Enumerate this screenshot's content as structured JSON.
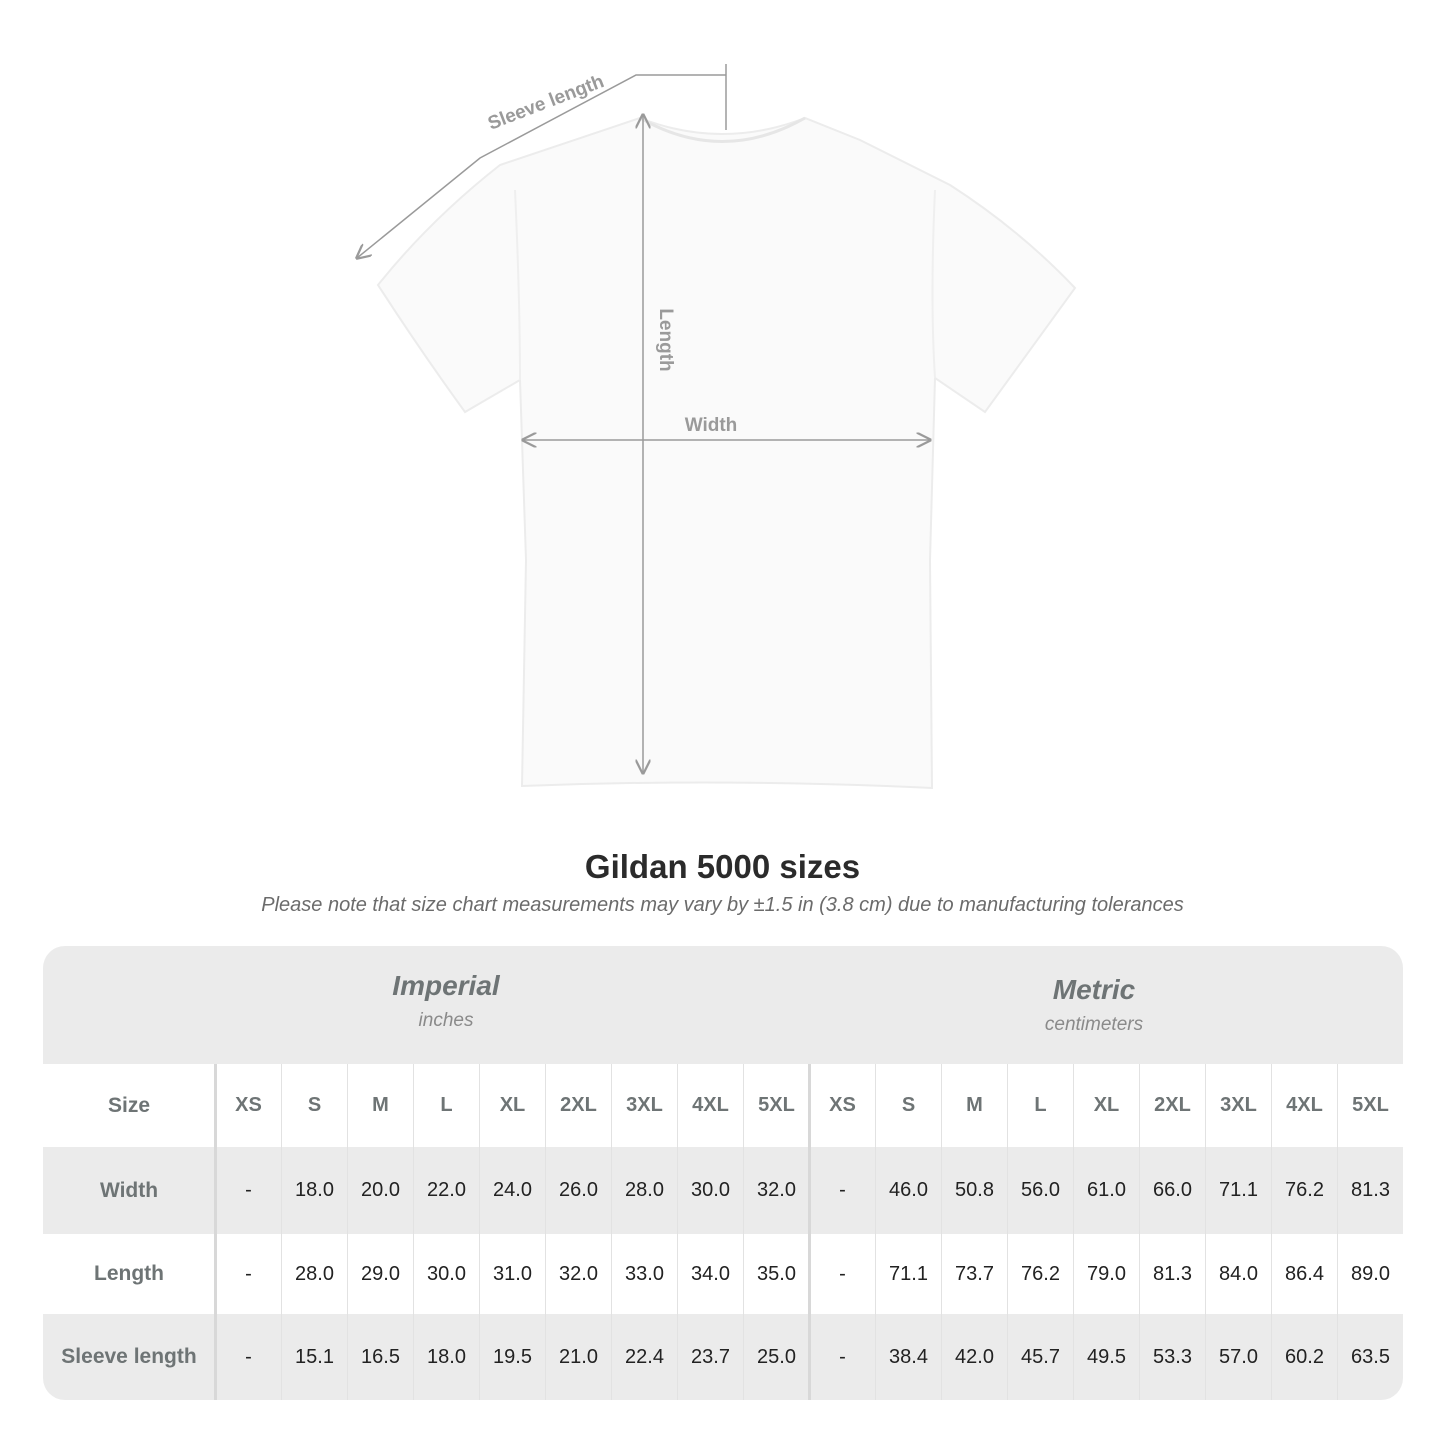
{
  "diagram": {
    "labels": {
      "sleeve": "Sleeve length",
      "length": "Length",
      "width": "Width"
    }
  },
  "title": "Gildan 5000 sizes",
  "note": "Please note that size chart measurements may vary by ±1.5 in (3.8 cm) due to manufacturing tolerances",
  "table": {
    "imperial": {
      "name": "Imperial",
      "unit": "inches"
    },
    "metric": {
      "name": "Metric",
      "unit": "centimeters"
    },
    "size_label": "Size",
    "sizes": [
      "XS",
      "S",
      "M",
      "L",
      "XL",
      "2XL",
      "3XL",
      "4XL",
      "5XL"
    ],
    "rows": [
      {
        "label": "Width",
        "imperial": [
          "-",
          "18.0",
          "20.0",
          "22.0",
          "24.0",
          "26.0",
          "28.0",
          "30.0",
          "32.0"
        ],
        "metric": [
          "-",
          "46.0",
          "50.8",
          "56.0",
          "61.0",
          "66.0",
          "71.1",
          "76.2",
          "81.3"
        ]
      },
      {
        "label": "Length",
        "imperial": [
          "-",
          "28.0",
          "29.0",
          "30.0",
          "31.0",
          "32.0",
          "33.0",
          "34.0",
          "35.0"
        ],
        "metric": [
          "-",
          "71.1",
          "73.7",
          "76.2",
          "79.0",
          "81.3",
          "84.0",
          "86.4",
          "89.0"
        ]
      },
      {
        "label": "Sleeve length",
        "imperial": [
          "-",
          "15.1",
          "16.5",
          "18.0",
          "19.5",
          "21.0",
          "22.4",
          "23.7",
          "25.0"
        ],
        "metric": [
          "-",
          "38.4",
          "42.0",
          "45.7",
          "49.5",
          "53.3",
          "57.0",
          "60.2",
          "63.5"
        ]
      }
    ]
  },
  "colors": {
    "band": "#ebebeb",
    "label": "#6e7475",
    "measure_line": "#9a9a9a"
  }
}
